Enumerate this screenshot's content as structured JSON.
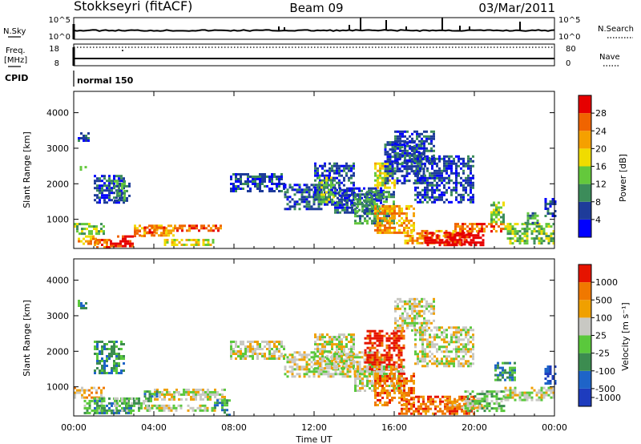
{
  "header": {
    "station": "Stokkseyri (fitACF)",
    "beam": "Beam 09",
    "date": "03/Mar/2011"
  },
  "strip_labels": {
    "nsky": "N.Sky",
    "nsky_ticks": [
      "10^5",
      "10^0"
    ],
    "nsearch": "N.Search",
    "nsearch_ticks": [
      "10^5",
      "10^0"
    ],
    "freq_line1": "Freq.",
    "freq_line2": "[MHz]",
    "freq_ticks": [
      "18",
      "8"
    ],
    "nave": "Nave",
    "nave_ticks": [
      "80",
      "0"
    ],
    "cpid": "CPID",
    "cpid_value": "normal 150"
  },
  "colors": {
    "power": [
      "#0000ff",
      "#1e3c9a",
      "#3c8c5a",
      "#64c83c",
      "#f0dc00",
      "#f5a000",
      "#f06400",
      "#e60000"
    ],
    "velocity": [
      "#1e3cbe",
      "#1e64c8",
      "#3c8c50",
      "#5ac83c",
      "#c8c8c3",
      "#f0a000",
      "#f07800",
      "#e61400"
    ]
  },
  "chart_data": [
    {
      "type": "heatmap",
      "panel": "power",
      "xlabel": "",
      "ylabel": "Slant Range [km]",
      "x_ticks": [
        "00:00",
        "04:00",
        "08:00",
        "12:00",
        "16:00",
        "20:00",
        "00:00"
      ],
      "xlim_hours": [
        0,
        24
      ],
      "y_ticks": [
        "1000",
        "2000",
        "3000",
        "4000"
      ],
      "ylim_km": [
        180,
        4600
      ],
      "colorbar_label": "Power [dB]",
      "colorbar_ticks": [
        "4",
        "8",
        "12",
        "16",
        "20",
        "24",
        "28"
      ],
      "regions_hours_km_level": [
        [
          0.2,
          0.7,
          3200,
          3450,
          1
        ],
        [
          0.3,
          0.6,
          2400,
          2500,
          2
        ],
        [
          0.0,
          1.5,
          580,
          900,
          3
        ],
        [
          0.2,
          1.2,
          300,
          550,
          5
        ],
        [
          1.0,
          1.8,
          220,
          450,
          6
        ],
        [
          1.8,
          3.0,
          250,
          550,
          7
        ],
        [
          3.0,
          3.5,
          500,
          700,
          6
        ],
        [
          3.0,
          5.0,
          550,
          850,
          5
        ],
        [
          3.5,
          4.5,
          550,
          800,
          6
        ],
        [
          4.5,
          7.0,
          280,
          450,
          4
        ],
        [
          5.0,
          7.5,
          650,
          850,
          6
        ],
        [
          1.0,
          2.5,
          1450,
          2250,
          1
        ],
        [
          2.0,
          2.8,
          1550,
          2100,
          2
        ],
        [
          7.8,
          10.5,
          1800,
          2300,
          1
        ],
        [
          10.5,
          12.3,
          1300,
          2000,
          1
        ],
        [
          12.0,
          14.0,
          1400,
          2600,
          1
        ],
        [
          12.2,
          13.0,
          1500,
          2200,
          3
        ],
        [
          13.0,
          15.5,
          1200,
          1900,
          1
        ],
        [
          14.0,
          16.0,
          900,
          1800,
          2
        ],
        [
          15.0,
          16.0,
          1900,
          2600,
          4
        ],
        [
          15.5,
          17.5,
          2000,
          3200,
          1
        ],
        [
          15.0,
          17.0,
          600,
          1400,
          5
        ],
        [
          16.0,
          18.0,
          2600,
          3500,
          1
        ],
        [
          17.0,
          20.0,
          1500,
          2800,
          1
        ],
        [
          16.5,
          19.0,
          350,
          700,
          5
        ],
        [
          17.5,
          20.5,
          250,
          650,
          8
        ],
        [
          18.5,
          19.8,
          300,
          600,
          7
        ],
        [
          19.0,
          21.5,
          650,
          900,
          6
        ],
        [
          20.8,
          21.5,
          900,
          1500,
          3
        ],
        [
          21.5,
          24.0,
          300,
          900,
          3
        ],
        [
          22.5,
          23.2,
          900,
          1200,
          2
        ],
        [
          23.5,
          24.0,
          1100,
          1600,
          1
        ]
      ]
    },
    {
      "type": "heatmap",
      "panel": "velocity",
      "xlabel": "Time UT",
      "ylabel": "Slant Range [km]",
      "x_ticks": [
        "00:00",
        "04:00",
        "08:00",
        "12:00",
        "16:00",
        "20:00",
        "00:00"
      ],
      "xlim_hours": [
        0,
        24
      ],
      "y_ticks": [
        "1000",
        "2000",
        "3000",
        "4000"
      ],
      "ylim_km": [
        180,
        4600
      ],
      "colorbar_label": "Velocity [m s⁻¹]",
      "colorbar_ticks": [
        "1000",
        "500",
        "100",
        "25",
        "-25",
        "-100",
        "-500",
        "-1000"
      ],
      "regions_hours_km_level": [
        [
          0.2,
          0.6,
          3200,
          3450,
          2
        ],
        [
          0.0,
          1.5,
          700,
          1000,
          5
        ],
        [
          0.5,
          1.5,
          250,
          700,
          3
        ],
        [
          1.0,
          3.0,
          250,
          700,
          2
        ],
        [
          2.0,
          4.0,
          300,
          700,
          3
        ],
        [
          3.5,
          7.0,
          300,
          500,
          4
        ],
        [
          4.0,
          7.5,
          650,
          950,
          4
        ],
        [
          3.5,
          4.2,
          700,
          900,
          2
        ],
        [
          1.0,
          2.5,
          1400,
          2300,
          2
        ],
        [
          7.0,
          7.8,
          200,
          650,
          2
        ],
        [
          7.8,
          10.5,
          1800,
          2300,
          4
        ],
        [
          10.5,
          15.5,
          1300,
          2000,
          4
        ],
        [
          12.0,
          14.0,
          1500,
          2500,
          4
        ],
        [
          14.5,
          16.5,
          1500,
          2600,
          7
        ],
        [
          14.0,
          16.5,
          900,
          1600,
          4
        ],
        [
          16.0,
          18.0,
          2600,
          3500,
          4
        ],
        [
          15.0,
          17.0,
          500,
          1400,
          6
        ],
        [
          16.2,
          20.0,
          250,
          750,
          6
        ],
        [
          17.0,
          20.0,
          1600,
          2700,
          4
        ],
        [
          18.5,
          20.5,
          400,
          650,
          5
        ],
        [
          19.5,
          21.5,
          300,
          900,
          3
        ],
        [
          21.0,
          22.0,
          1200,
          1700,
          2
        ],
        [
          21.5,
          24.0,
          600,
          1000,
          4
        ],
        [
          23.5,
          24.0,
          1100,
          1600,
          0
        ]
      ]
    }
  ]
}
